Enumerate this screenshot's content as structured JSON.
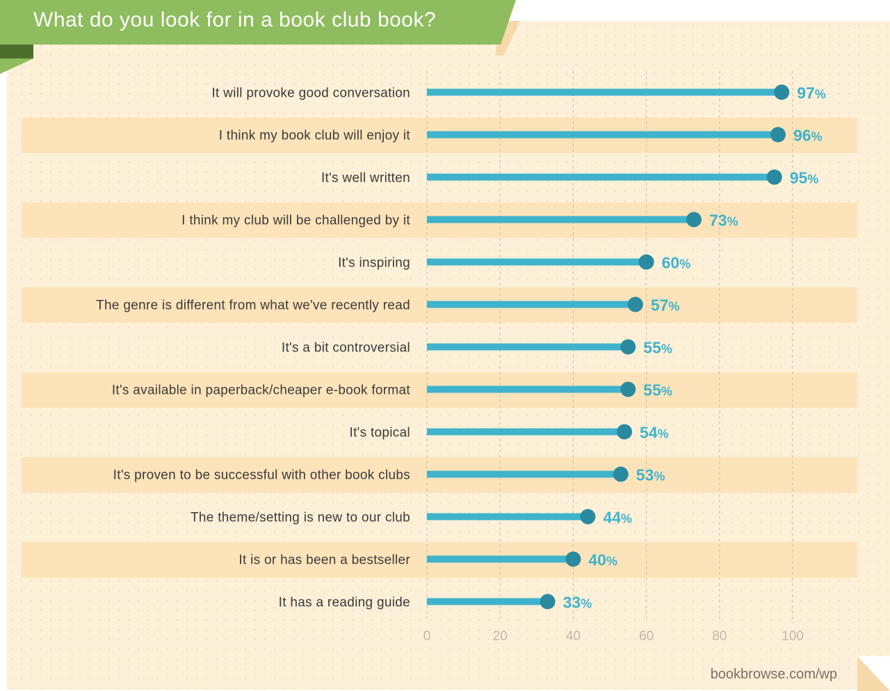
{
  "title": "What do you look for in a book club book?",
  "source": "bookbrowse.com/wp",
  "colors": {
    "background": "#fdf0d8",
    "row_stripe": "#fde3b9",
    "bar": "#3fb3cc",
    "dot": "#2a8aa0",
    "value_text": "#3fb3cc",
    "banner": "#8ebc5e",
    "banner_fold": "#4e6e2d",
    "gridline": "#c9bcaa"
  },
  "chart_data": {
    "type": "bar",
    "orientation": "horizontal",
    "style": "lollipop",
    "categories": [
      "It will provoke good conversation",
      "I think my book club will enjoy it",
      "It's well written",
      "I think my club will be challenged by it",
      "It's inspiring",
      "The genre is different from what we've recently read",
      "It's a bit controversial",
      "It's available in paperback/cheaper e-book format",
      "It's topical",
      "It's proven to be successful with other book clubs",
      "The theme/setting is new to our club",
      "It is or has been a bestseller",
      "It has a reading guide"
    ],
    "values": [
      97,
      96,
      95,
      73,
      60,
      57,
      55,
      55,
      54,
      53,
      44,
      40,
      33
    ],
    "value_suffix": "%",
    "xlim": [
      0,
      100
    ],
    "xticks": [
      0,
      20,
      40,
      60,
      80,
      100
    ],
    "grid": "vertical dashed",
    "title": "What do you look for in a book club book?",
    "xlabel": "",
    "ylabel": ""
  }
}
